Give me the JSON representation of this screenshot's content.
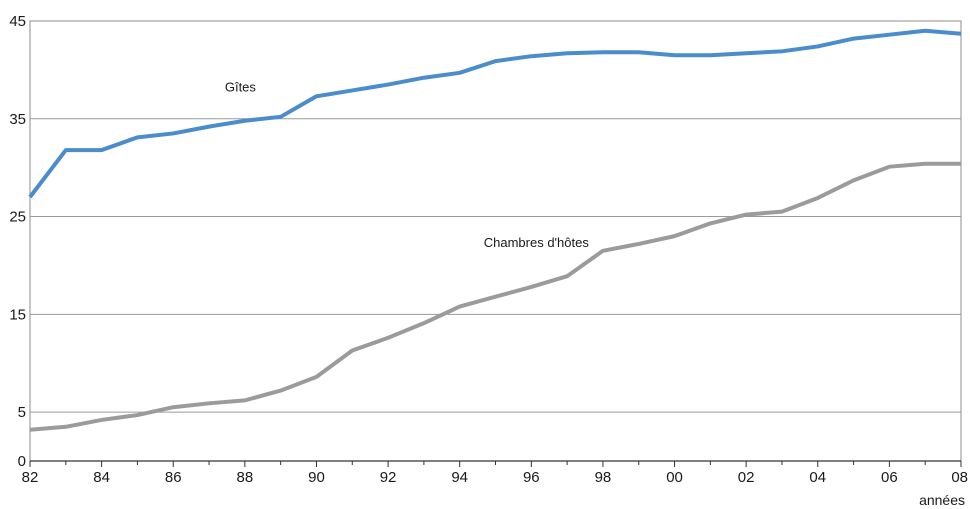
{
  "chart_data": {
    "type": "line",
    "title": "",
    "xlabel": "années",
    "ylabel": "",
    "x": [
      1982,
      1983,
      1984,
      1985,
      1986,
      1987,
      1988,
      1989,
      1990,
      1991,
      1992,
      1993,
      1994,
      1995,
      1996,
      1997,
      1998,
      1999,
      2000,
      2001,
      2002,
      2003,
      2004,
      2005,
      2006,
      2007,
      2008
    ],
    "xlim": [
      1982,
      2008
    ],
    "x_ticks": [
      1982,
      1984,
      1986,
      1988,
      1990,
      1992,
      1994,
      1996,
      1998,
      2000,
      2002,
      2004,
      2006,
      2008
    ],
    "x_tick_labels": [
      "82",
      "84",
      "86",
      "88",
      "90",
      "92",
      "94",
      "96",
      "98",
      "00",
      "02",
      "04",
      "06",
      "08"
    ],
    "ylim": [
      0,
      45
    ],
    "y_ticks": [
      0,
      5,
      15,
      25,
      35,
      45
    ],
    "y_tick_labels": [
      "0",
      "5",
      "15",
      "25",
      "35",
      "45"
    ],
    "grid": true,
    "legend": "none",
    "series": [
      {
        "name": "Gîtes",
        "color": "#4a8ccc",
        "values": [
          27.0,
          31.8,
          31.8,
          33.1,
          33.5,
          34.2,
          34.8,
          35.2,
          37.3,
          37.9,
          38.5,
          39.2,
          39.7,
          40.9,
          41.4,
          41.7,
          41.8,
          41.8,
          41.5,
          41.5,
          41.7,
          41.9,
          42.4,
          43.2,
          43.6,
          44.0,
          43.7
        ]
      },
      {
        "name": "Chambres d'hôtes",
        "color": "#9b9b9b",
        "values": [
          3.2,
          3.5,
          4.2,
          4.7,
          5.5,
          5.9,
          6.2,
          7.2,
          8.6,
          11.3,
          12.6,
          14.1,
          15.8,
          16.8,
          17.8,
          18.9,
          21.5,
          22.2,
          23.0,
          24.3,
          25.2,
          25.5,
          26.9,
          28.7,
          30.1,
          30.4,
          30.4
        ]
      }
    ]
  }
}
